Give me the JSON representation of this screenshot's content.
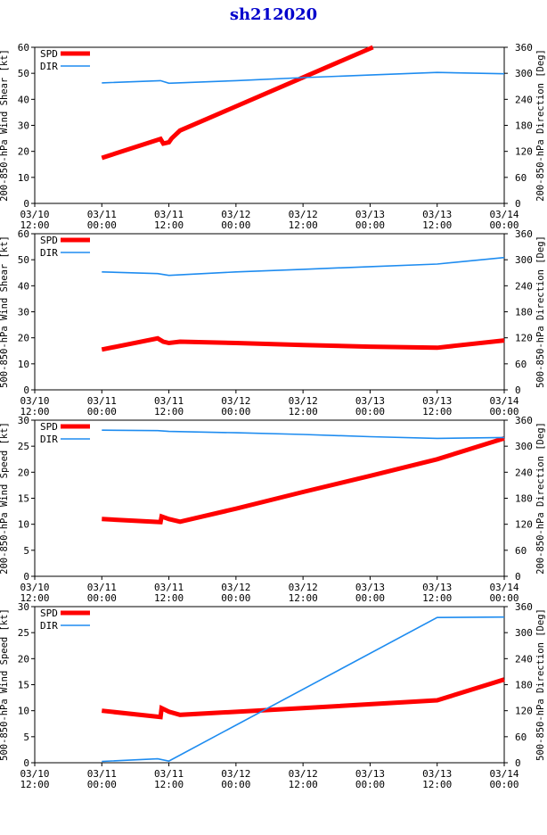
{
  "title": "sh212020",
  "colors": {
    "spd": "#ff0000",
    "dir": "#1e8cf0",
    "title": "#0000cc"
  },
  "x_ticks": [
    [
      "03/10",
      "12:00"
    ],
    [
      "03/11",
      "00:00"
    ],
    [
      "03/11",
      "12:00"
    ],
    [
      "03/12",
      "00:00"
    ],
    [
      "03/12",
      "12:00"
    ],
    [
      "03/13",
      "00:00"
    ],
    [
      "03/13",
      "12:00"
    ],
    [
      "03/14",
      "00:00"
    ]
  ],
  "chart_data": [
    {
      "type": "line",
      "ylabel_left": "200-850-hPa Wind Shear [kt]",
      "ylabel_right": "200-850-hPa Direction [Deg]",
      "ylim_left": [
        0,
        60
      ],
      "yticks_left": [
        0,
        10,
        20,
        30,
        40,
        50,
        60
      ],
      "ylim_right": [
        0,
        360
      ],
      "yticks_right": [
        0,
        60,
        120,
        180,
        240,
        300,
        360
      ],
      "xlim_hours": [
        0,
        84
      ],
      "legend": [
        "SPD",
        "DIR"
      ],
      "series": [
        {
          "name": "SPD",
          "axis": "left",
          "x": [
            12,
            22.5,
            23,
            24,
            24.5,
            26,
            60.5
          ],
          "y": [
            17.5,
            24.8,
            23,
            23.5,
            25,
            28,
            60
          ]
        },
        {
          "name": "DIR",
          "axis": "right",
          "x": [
            12,
            22.5,
            24,
            36,
            48,
            60,
            72,
            84
          ],
          "y": [
            278,
            283,
            277,
            283,
            290,
            296,
            302,
            299
          ]
        }
      ]
    },
    {
      "type": "line",
      "ylabel_left": "500-850-hPa Wind Shear [kt]",
      "ylabel_right": "500-850-hPa Direction [Deg]",
      "ylim_left": [
        0,
        60
      ],
      "yticks_left": [
        0,
        10,
        20,
        30,
        40,
        50,
        60
      ],
      "ylim_right": [
        0,
        360
      ],
      "yticks_right": [
        0,
        60,
        120,
        180,
        240,
        300,
        360
      ],
      "xlim_hours": [
        0,
        84
      ],
      "legend": [
        "SPD",
        "DIR"
      ],
      "series": [
        {
          "name": "SPD",
          "axis": "left",
          "x": [
            12,
            22,
            23,
            24,
            26,
            36,
            48,
            60,
            72,
            84
          ],
          "y": [
            15.5,
            19.8,
            18.5,
            18,
            18.5,
            18,
            17.2,
            16.6,
            16.2,
            19
          ]
        },
        {
          "name": "DIR",
          "axis": "right",
          "x": [
            12,
            22,
            24,
            36,
            48,
            60,
            72,
            84
          ],
          "y": [
            272,
            268,
            264,
            272,
            278,
            284,
            290,
            305
          ]
        }
      ]
    },
    {
      "type": "line",
      "ylabel_left": "200-850-hPa Wind Speed [kt]",
      "ylabel_right": "200-850-hPa Direction [Deg]",
      "ylim_left": [
        0,
        30
      ],
      "yticks_left": [
        0,
        5,
        10,
        15,
        20,
        25,
        30
      ],
      "ylim_right": [
        0,
        360
      ],
      "yticks_right": [
        0,
        60,
        120,
        180,
        240,
        300,
        360
      ],
      "xlim_hours": [
        0,
        84
      ],
      "legend": [
        "SPD",
        "DIR"
      ],
      "series": [
        {
          "name": "SPD",
          "axis": "left",
          "x": [
            12,
            22.5,
            22.7,
            24,
            26,
            36,
            48,
            60,
            72,
            84
          ],
          "y": [
            11,
            10.4,
            11.5,
            11,
            10.5,
            13,
            16.2,
            19.3,
            22.5,
            26.5
          ]
        },
        {
          "name": "DIR",
          "axis": "right",
          "x": [
            12,
            22,
            24,
            36,
            48,
            60,
            72,
            84
          ],
          "y": [
            337,
            336,
            334,
            331,
            327,
            322,
            318,
            320
          ]
        }
      ]
    },
    {
      "type": "line",
      "ylabel_left": "500-850-hPa Wind Speed [kt]",
      "ylabel_right": "500-850-hPa Direction [Deg]",
      "ylim_left": [
        0,
        30
      ],
      "yticks_left": [
        0,
        5,
        10,
        15,
        20,
        25,
        30
      ],
      "ylim_right": [
        0,
        360
      ],
      "yticks_right": [
        0,
        60,
        120,
        180,
        240,
        300,
        360
      ],
      "xlim_hours": [
        0,
        84
      ],
      "legend": [
        "SPD",
        "DIR"
      ],
      "series": [
        {
          "name": "SPD",
          "axis": "left",
          "x": [
            12,
            22.5,
            22.7,
            24,
            26,
            48,
            72,
            84
          ],
          "y": [
            10,
            8.8,
            10.5,
            9.8,
            9.2,
            10.5,
            12,
            16
          ]
        },
        {
          "name": "DIR",
          "axis": "right",
          "x": [
            12,
            22,
            24,
            72,
            84
          ],
          "y": [
            3,
            9,
            4,
            335,
            336
          ]
        }
      ]
    }
  ]
}
